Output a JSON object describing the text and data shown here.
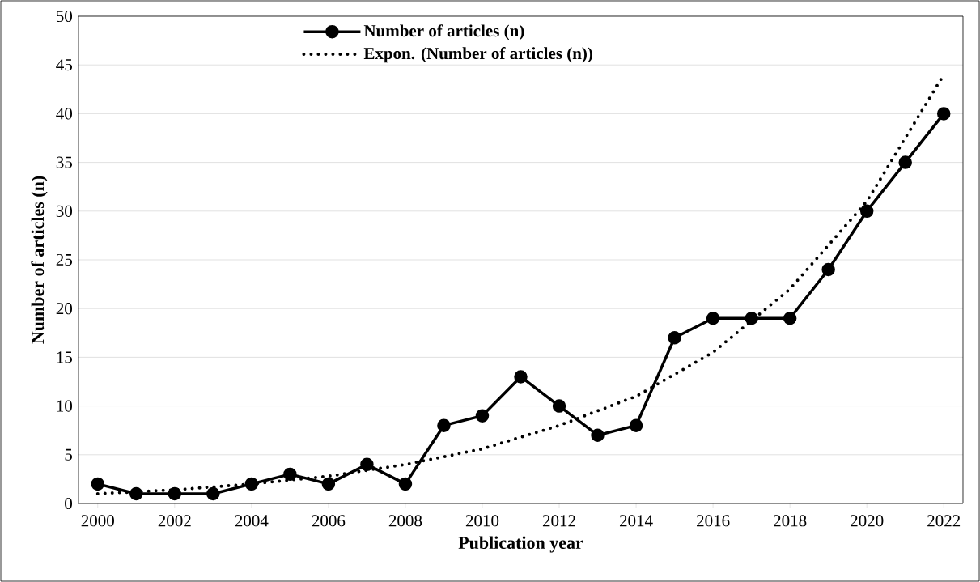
{
  "chart_data": {
    "type": "line",
    "xlabel": "Publication year",
    "ylabel": "Number of articles (n)",
    "x": [
      2000,
      2001,
      2002,
      2003,
      2004,
      2005,
      2006,
      2007,
      2008,
      2009,
      2010,
      2011,
      2012,
      2013,
      2014,
      2015,
      2016,
      2017,
      2018,
      2019,
      2020,
      2021,
      2022
    ],
    "series": [
      {
        "name": "Number of articles (n)",
        "color": "#000000",
        "marker": "circle",
        "line_style": "solid",
        "values": [
          2,
          1,
          1,
          1,
          2,
          3,
          2,
          4,
          2,
          8,
          9,
          13,
          10,
          7,
          8,
          17,
          19,
          19,
          19,
          24,
          30,
          35,
          40
        ]
      },
      {
        "name": "Expon. (Number of articles (n))",
        "color": "#000000",
        "marker": "none",
        "line_style": "dotted",
        "x": [
          2000,
          2002,
          2004,
          2006,
          2008,
          2010,
          2012,
          2014,
          2016,
          2018,
          2020,
          2022
        ],
        "values": [
          1,
          1.4,
          2,
          2.8,
          4,
          5.6,
          8,
          11,
          15.5,
          22,
          31,
          44
        ]
      }
    ],
    "xlim": [
      1999.5,
      2022.5
    ],
    "xticks": [
      2000,
      2002,
      2004,
      2006,
      2008,
      2010,
      2012,
      2014,
      2016,
      2018,
      2020,
      2022
    ],
    "ylim": [
      0,
      50
    ],
    "yticks": [
      0,
      5,
      10,
      15,
      20,
      25,
      30,
      35,
      40,
      45,
      50
    ],
    "grid": "y",
    "legend": "top"
  }
}
